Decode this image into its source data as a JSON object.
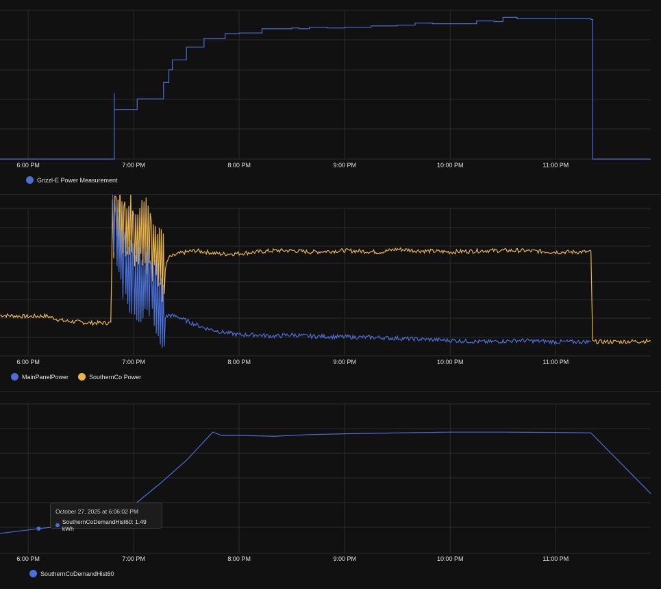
{
  "colors": {
    "blue": "#4a6fd6",
    "yellow": "#e8b44c",
    "grid": "#2b2b2b",
    "background": "#111111"
  },
  "time_axis_labels": [
    "6:00 PM",
    "7:00 PM",
    "8:00 PM",
    "9:00 PM",
    "10:00 PM",
    "11:00 PM"
  ],
  "chart_data": [
    {
      "type": "line",
      "title": "",
      "x_range": [
        "5:44 PM",
        "11:54 PM"
      ],
      "grid": true,
      "legend_position": "bottom-left",
      "legend": [
        "Grizzl-E Power Measurement"
      ],
      "series": [
        {
          "name": "Grizzl-E Power Measurement",
          "points": [
            [
              "5:44 PM",
              0
            ],
            [
              "6:48 PM",
              0
            ],
            [
              "6:49 PM",
              93
            ],
            [
              "6:49 PM",
              70
            ],
            [
              "7:01 PM",
              70
            ],
            [
              "7:02 PM",
              85
            ],
            [
              "7:15 PM",
              85
            ],
            [
              "7:17 PM",
              108
            ],
            [
              "7:20 PM",
              126
            ],
            [
              "7:22 PM",
              140
            ],
            [
              "7:27 PM",
              140
            ],
            [
              "7:30 PM",
              158
            ],
            [
              "7:35 PM",
              158
            ],
            [
              "7:40 PM",
              170
            ],
            [
              "7:50 PM",
              170
            ],
            [
              "7:52 PM",
              177
            ],
            [
              "8:00 PM",
              178
            ],
            [
              "8:12 PM",
              178
            ],
            [
              "8:13 PM",
              184
            ],
            [
              "8:30 PM",
              185
            ],
            [
              "8:34 PM",
              184
            ],
            [
              "8:40 PM",
              186
            ],
            [
              "8:50 PM",
              185
            ],
            [
              "9:00 PM",
              186
            ],
            [
              "9:15 PM",
              188
            ],
            [
              "9:30 PM",
              189
            ],
            [
              "9:40 PM",
              192
            ],
            [
              "9:50 PM",
              191
            ],
            [
              "10:00 PM",
              191
            ],
            [
              "10:12 PM",
              191
            ],
            [
              "10:15 PM",
              195
            ],
            [
              "10:25 PM",
              194
            ],
            [
              "10:30 PM",
              200
            ],
            [
              "10:38 PM",
              198
            ],
            [
              "11:00 PM",
              198
            ],
            [
              "11:20 PM",
              197
            ],
            [
              "11:21 PM",
              0
            ],
            [
              "11:54 PM",
              0
            ]
          ]
        }
      ]
    },
    {
      "type": "line",
      "title": "",
      "x_range": [
        "5:44 PM",
        "11:54 PM"
      ],
      "grid": true,
      "legend_position": "bottom-left",
      "legend": [
        "MainPanelPower",
        "SouthernCo Power"
      ],
      "series": [
        {
          "name": "SouthernCo Power",
          "points": [
            [
              "5:44 PM",
              58
            ],
            [
              "6:00 PM",
              56
            ],
            [
              "6:10 PM",
              57
            ],
            [
              "6:20 PM",
              50
            ],
            [
              "6:35 PM",
              47
            ],
            [
              "6:47 PM",
              47
            ],
            [
              "6:48 PM",
              190
            ],
            [
              "6:50 PM",
              200
            ],
            [
              "6:55 PM",
              185
            ],
            [
              "7:00 PM",
              175
            ],
            [
              "7:10 PM",
              165
            ],
            [
              "7:18 PM",
              125
            ],
            [
              "7:20 PM",
              140
            ],
            [
              "7:25 PM",
              145
            ],
            [
              "7:30 PM",
              148
            ],
            [
              "7:35 PM",
              150
            ],
            [
              "7:50 PM",
              145
            ],
            [
              "8:00 PM",
              146
            ],
            [
              "8:10 PM",
              148
            ],
            [
              "8:20 PM",
              150
            ],
            [
              "8:30 PM",
              150
            ],
            [
              "8:40 PM",
              148
            ],
            [
              "9:00 PM",
              150
            ],
            [
              "9:20 PM",
              148
            ],
            [
              "9:30 PM",
              152
            ],
            [
              "9:40 PM",
              150
            ],
            [
              "10:00 PM",
              148
            ],
            [
              "10:20 PM",
              150
            ],
            [
              "10:40 PM",
              150
            ],
            [
              "11:00 PM",
              148
            ],
            [
              "11:20 PM",
              148
            ],
            [
              "11:21 PM",
              20
            ],
            [
              "11:30 PM",
              20
            ],
            [
              "11:54 PM",
              21
            ]
          ]
        },
        {
          "name": "MainPanelPower",
          "points": [
            [
              "6:48 PM",
              190
            ],
            [
              "6:50 PM",
              160
            ],
            [
              "6:55 PM",
              120
            ],
            [
              "7:00 PM",
              110
            ],
            [
              "7:10 PM",
              100
            ],
            [
              "7:18 PM",
              55
            ],
            [
              "7:20 PM",
              58
            ],
            [
              "7:25 PM",
              56
            ],
            [
              "7:30 PM",
              50
            ],
            [
              "7:40 PM",
              40
            ],
            [
              "7:50 PM",
              34
            ],
            [
              "8:00 PM",
              30
            ],
            [
              "8:10 PM",
              30
            ],
            [
              "8:20 PM",
              28
            ],
            [
              "8:30 PM",
              30
            ],
            [
              "8:40 PM",
              28
            ],
            [
              "9:00 PM",
              27
            ],
            [
              "9:20 PM",
              26
            ],
            [
              "9:40 PM",
              24
            ],
            [
              "10:00 PM",
              22
            ],
            [
              "10:20 PM",
              20
            ],
            [
              "10:40 PM",
              22
            ],
            [
              "11:00 PM",
              20
            ],
            [
              "11:20 PM",
              20
            ]
          ]
        }
      ]
    },
    {
      "type": "line",
      "title": "",
      "x_range": [
        "5:44 PM",
        "11:54 PM"
      ],
      "grid": true,
      "legend_position": "bottom-left",
      "legend": [
        "SouthernCoDemandHist60"
      ],
      "series": [
        {
          "name": "SouthernCoDemandHist60",
          "points": [
            [
              "5:44 PM",
              1.2
            ],
            [
              "6:06 PM",
              1.49
            ],
            [
              "6:30 PM",
              1.75
            ],
            [
              "6:48 PM",
              1.9
            ],
            [
              "7:00 PM",
              2.9
            ],
            [
              "7:15 PM",
              4.2
            ],
            [
              "7:30 PM",
              5.6
            ],
            [
              "7:45 PM",
              7.3
            ],
            [
              "7:50 PM",
              7.1
            ],
            [
              "8:00 PM",
              7.1
            ],
            [
              "8:20 PM",
              7.05
            ],
            [
              "8:40 PM",
              7.15
            ],
            [
              "9:00 PM",
              7.2
            ],
            [
              "9:30 PM",
              7.25
            ],
            [
              "10:00 PM",
              7.3
            ],
            [
              "10:30 PM",
              7.3
            ],
            [
              "11:00 PM",
              7.28
            ],
            [
              "11:20 PM",
              7.25
            ],
            [
              "11:54 PM",
              3.6
            ]
          ]
        }
      ]
    }
  ],
  "tooltip": {
    "timestamp": "October 27, 2025 at 6:06:02 PM",
    "entry": "SouthernCoDemandHist60: 1.49 kWh"
  }
}
